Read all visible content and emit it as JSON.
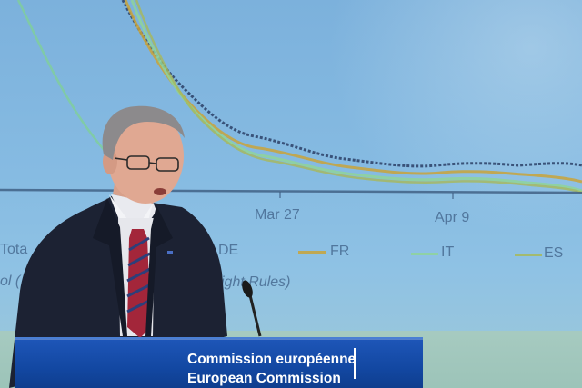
{
  "projection": {
    "date_labels": [
      "Mar 27",
      "Apr 9"
    ],
    "legend": [
      "FR",
      "IT",
      "ES"
    ],
    "partial_left_legend": "DE",
    "partial_left_text": [
      "Tota",
      "ol (",
      "ight Rules)"
    ],
    "colors": {
      "fr": "#c9a33a",
      "it": "#8fd39a",
      "es": "#a7b85a",
      "dark_series": "#2b3f66",
      "axis": "#3d5c80"
    }
  },
  "podium": {
    "line1": "Commission européenne",
    "line2": "European Commission",
    "color": "#1247a1"
  }
}
